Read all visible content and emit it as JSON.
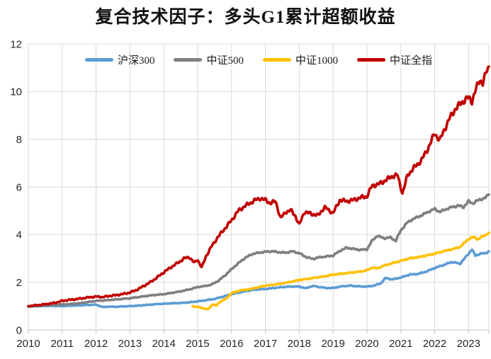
{
  "title": "复合技术因子：多头G1累计超额收益",
  "colors": {
    "grid": "#D9D9D9",
    "axis_line": "#BFBFBF",
    "axis_text": "#262626",
    "background": "#FFFFFF"
  },
  "chart_data": {
    "type": "line",
    "title": "复合技术因子：多头G1累计超额收益",
    "xlabel": "",
    "ylabel": "",
    "grid": true,
    "legend_position": "top-inside",
    "x_axis": {
      "min": 2010,
      "max": 2023.6,
      "ticks": [
        2010,
        2011,
        2012,
        2013,
        2014,
        2015,
        2016,
        2017,
        2018,
        2019,
        2020,
        2021,
        2022,
        2023
      ]
    },
    "y_axis": {
      "min": 0,
      "max": 12,
      "ticks": [
        0,
        2,
        4,
        6,
        8,
        10,
        12
      ]
    },
    "series": [
      {
        "name": "沪深300",
        "id": "hs300",
        "color": "#5B9BD5",
        "points": [
          [
            2010.0,
            0.98
          ],
          [
            2010.25,
            1.0
          ],
          [
            2010.5,
            1.01
          ],
          [
            2010.75,
            1.01
          ],
          [
            2011.0,
            1.0
          ],
          [
            2011.25,
            1.02
          ],
          [
            2011.5,
            1.03
          ],
          [
            2011.75,
            1.05
          ],
          [
            2012.0,
            1.06
          ],
          [
            2012.2,
            0.96
          ],
          [
            2012.4,
            0.98
          ],
          [
            2012.6,
            0.97
          ],
          [
            2012.8,
            0.99
          ],
          [
            2013.0,
            1.0
          ],
          [
            2013.25,
            1.02
          ],
          [
            2013.5,
            1.05
          ],
          [
            2013.75,
            1.08
          ],
          [
            2014.0,
            1.1
          ],
          [
            2014.25,
            1.12
          ],
          [
            2014.5,
            1.13
          ],
          [
            2014.75,
            1.16
          ],
          [
            2015.0,
            1.2
          ],
          [
            2015.25,
            1.25
          ],
          [
            2015.5,
            1.3
          ],
          [
            2015.75,
            1.4
          ],
          [
            2016.0,
            1.5
          ],
          [
            2016.25,
            1.58
          ],
          [
            2016.5,
            1.65
          ],
          [
            2016.75,
            1.7
          ],
          [
            2017.0,
            1.72
          ],
          [
            2017.25,
            1.76
          ],
          [
            2017.5,
            1.8
          ],
          [
            2017.75,
            1.82
          ],
          [
            2018.0,
            1.82
          ],
          [
            2018.2,
            1.75
          ],
          [
            2018.4,
            1.85
          ],
          [
            2018.6,
            1.8
          ],
          [
            2018.8,
            1.76
          ],
          [
            2019.0,
            1.76
          ],
          [
            2019.25,
            1.83
          ],
          [
            2019.5,
            1.86
          ],
          [
            2019.75,
            1.83
          ],
          [
            2020.0,
            1.82
          ],
          [
            2020.2,
            1.86
          ],
          [
            2020.4,
            1.95
          ],
          [
            2020.55,
            2.18
          ],
          [
            2020.75,
            2.12
          ],
          [
            2021.0,
            2.2
          ],
          [
            2021.25,
            2.32
          ],
          [
            2021.5,
            2.35
          ],
          [
            2021.75,
            2.45
          ],
          [
            2022.0,
            2.6
          ],
          [
            2022.25,
            2.72
          ],
          [
            2022.5,
            2.85
          ],
          [
            2022.75,
            2.78
          ],
          [
            2023.0,
            3.2
          ],
          [
            2023.1,
            3.38
          ],
          [
            2023.2,
            3.12
          ],
          [
            2023.35,
            3.2
          ],
          [
            2023.5,
            3.22
          ],
          [
            2023.6,
            3.3
          ]
        ]
      },
      {
        "name": "中证500",
        "id": "csi500",
        "color": "#7F7F7F",
        "points": [
          [
            2010.0,
            1.0
          ],
          [
            2010.25,
            1.01
          ],
          [
            2010.5,
            1.03
          ],
          [
            2010.75,
            1.05
          ],
          [
            2011.0,
            1.07
          ],
          [
            2011.25,
            1.09
          ],
          [
            2011.5,
            1.12
          ],
          [
            2011.75,
            1.17
          ],
          [
            2012.0,
            1.22
          ],
          [
            2012.25,
            1.24
          ],
          [
            2012.5,
            1.27
          ],
          [
            2012.75,
            1.3
          ],
          [
            2013.0,
            1.33
          ],
          [
            2013.25,
            1.38
          ],
          [
            2013.5,
            1.43
          ],
          [
            2013.75,
            1.47
          ],
          [
            2014.0,
            1.5
          ],
          [
            2014.25,
            1.56
          ],
          [
            2014.5,
            1.62
          ],
          [
            2014.75,
            1.7
          ],
          [
            2015.0,
            1.8
          ],
          [
            2015.2,
            1.84
          ],
          [
            2015.4,
            1.9
          ],
          [
            2015.6,
            2.05
          ],
          [
            2015.8,
            2.28
          ],
          [
            2016.0,
            2.55
          ],
          [
            2016.2,
            2.8
          ],
          [
            2016.4,
            3.02
          ],
          [
            2016.6,
            3.18
          ],
          [
            2016.8,
            3.24
          ],
          [
            2017.0,
            3.28
          ],
          [
            2017.2,
            3.3
          ],
          [
            2017.4,
            3.26
          ],
          [
            2017.6,
            3.24
          ],
          [
            2017.8,
            3.3
          ],
          [
            2018.0,
            3.22
          ],
          [
            2018.2,
            3.06
          ],
          [
            2018.4,
            2.98
          ],
          [
            2018.6,
            3.05
          ],
          [
            2018.8,
            3.08
          ],
          [
            2019.0,
            3.12
          ],
          [
            2019.2,
            3.32
          ],
          [
            2019.4,
            3.45
          ],
          [
            2019.6,
            3.4
          ],
          [
            2019.8,
            3.36
          ],
          [
            2020.0,
            3.38
          ],
          [
            2020.15,
            3.74
          ],
          [
            2020.3,
            3.95
          ],
          [
            2020.5,
            3.85
          ],
          [
            2020.7,
            3.88
          ],
          [
            2020.85,
            3.74
          ],
          [
            2021.0,
            4.18
          ],
          [
            2021.2,
            4.52
          ],
          [
            2021.4,
            4.68
          ],
          [
            2021.6,
            4.8
          ],
          [
            2021.8,
            4.95
          ],
          [
            2022.0,
            5.08
          ],
          [
            2022.15,
            4.95
          ],
          [
            2022.3,
            5.05
          ],
          [
            2022.5,
            5.15
          ],
          [
            2022.7,
            5.22
          ],
          [
            2022.85,
            5.15
          ],
          [
            2023.0,
            5.4
          ],
          [
            2023.12,
            5.3
          ],
          [
            2023.25,
            5.42
          ],
          [
            2023.4,
            5.5
          ],
          [
            2023.5,
            5.55
          ],
          [
            2023.6,
            5.68
          ]
        ]
      },
      {
        "name": "中证1000",
        "id": "csi1000",
        "color": "#FFC000",
        "points": [
          [
            2014.85,
            1.0
          ],
          [
            2015.05,
            0.95
          ],
          [
            2015.2,
            0.9
          ],
          [
            2015.3,
            0.86
          ],
          [
            2015.45,
            1.08
          ],
          [
            2015.55,
            1.02
          ],
          [
            2015.7,
            1.22
          ],
          [
            2015.85,
            1.32
          ],
          [
            2016.0,
            1.55
          ],
          [
            2016.25,
            1.66
          ],
          [
            2016.5,
            1.7
          ],
          [
            2016.75,
            1.78
          ],
          [
            2017.0,
            1.86
          ],
          [
            2017.25,
            1.9
          ],
          [
            2017.5,
            1.95
          ],
          [
            2017.75,
            2.02
          ],
          [
            2018.0,
            2.1
          ],
          [
            2018.25,
            2.14
          ],
          [
            2018.5,
            2.2
          ],
          [
            2018.75,
            2.25
          ],
          [
            2019.0,
            2.32
          ],
          [
            2019.25,
            2.36
          ],
          [
            2019.5,
            2.4
          ],
          [
            2019.75,
            2.44
          ],
          [
            2020.0,
            2.5
          ],
          [
            2020.15,
            2.62
          ],
          [
            2020.3,
            2.58
          ],
          [
            2020.5,
            2.7
          ],
          [
            2020.75,
            2.8
          ],
          [
            2021.0,
            2.9
          ],
          [
            2021.25,
            3.0
          ],
          [
            2021.5,
            3.05
          ],
          [
            2021.75,
            3.12
          ],
          [
            2022.0,
            3.2
          ],
          [
            2022.25,
            3.3
          ],
          [
            2022.5,
            3.38
          ],
          [
            2022.75,
            3.48
          ],
          [
            2023.0,
            3.82
          ],
          [
            2023.15,
            3.9
          ],
          [
            2023.28,
            3.8
          ],
          [
            2023.4,
            3.92
          ],
          [
            2023.5,
            3.98
          ],
          [
            2023.6,
            4.08
          ]
        ]
      },
      {
        "name": "中证全指",
        "id": "csi-all",
        "color": "#C00000",
        "points": [
          [
            2010.0,
            1.0
          ],
          [
            2010.2,
            1.03
          ],
          [
            2010.4,
            1.06
          ],
          [
            2010.6,
            1.1
          ],
          [
            2010.8,
            1.14
          ],
          [
            2011.0,
            1.22
          ],
          [
            2011.2,
            1.26
          ],
          [
            2011.4,
            1.29
          ],
          [
            2011.6,
            1.33
          ],
          [
            2011.8,
            1.37
          ],
          [
            2012.0,
            1.4
          ],
          [
            2012.2,
            1.38
          ],
          [
            2012.4,
            1.43
          ],
          [
            2012.6,
            1.46
          ],
          [
            2012.8,
            1.51
          ],
          [
            2013.0,
            1.57
          ],
          [
            2013.2,
            1.68
          ],
          [
            2013.4,
            1.84
          ],
          [
            2013.6,
            2.0
          ],
          [
            2013.8,
            2.2
          ],
          [
            2014.0,
            2.42
          ],
          [
            2014.2,
            2.62
          ],
          [
            2014.4,
            2.8
          ],
          [
            2014.6,
            3.0
          ],
          [
            2014.75,
            3.06
          ],
          [
            2014.9,
            2.82
          ],
          [
            2015.0,
            2.95
          ],
          [
            2015.12,
            2.62
          ],
          [
            2015.25,
            3.1
          ],
          [
            2015.4,
            3.48
          ],
          [
            2015.6,
            3.9
          ],
          [
            2015.8,
            4.25
          ],
          [
            2016.0,
            4.6
          ],
          [
            2016.2,
            5.0
          ],
          [
            2016.4,
            5.2
          ],
          [
            2016.55,
            5.32
          ],
          [
            2016.7,
            5.45
          ],
          [
            2016.85,
            5.52
          ],
          [
            2017.0,
            5.45
          ],
          [
            2017.15,
            5.32
          ],
          [
            2017.3,
            5.4
          ],
          [
            2017.45,
            4.68
          ],
          [
            2017.6,
            4.95
          ],
          [
            2017.75,
            5.02
          ],
          [
            2017.88,
            4.8
          ],
          [
            2018.0,
            4.4
          ],
          [
            2018.15,
            4.95
          ],
          [
            2018.35,
            4.88
          ],
          [
            2018.55,
            4.8
          ],
          [
            2018.75,
            5.15
          ],
          [
            2019.0,
            4.9
          ],
          [
            2019.2,
            5.45
          ],
          [
            2019.4,
            5.4
          ],
          [
            2019.6,
            5.45
          ],
          [
            2019.8,
            5.55
          ],
          [
            2020.0,
            5.6
          ],
          [
            2020.15,
            6.05
          ],
          [
            2020.35,
            6.12
          ],
          [
            2020.55,
            6.28
          ],
          [
            2020.75,
            6.45
          ],
          [
            2020.9,
            6.5
          ],
          [
            2021.05,
            5.72
          ],
          [
            2021.2,
            6.5
          ],
          [
            2021.4,
            6.82
          ],
          [
            2021.6,
            7.1
          ],
          [
            2021.8,
            7.6
          ],
          [
            2022.0,
            8.25
          ],
          [
            2022.15,
            7.95
          ],
          [
            2022.3,
            8.45
          ],
          [
            2022.45,
            8.9
          ],
          [
            2022.6,
            9.25
          ],
          [
            2022.8,
            9.55
          ],
          [
            2023.0,
            9.75
          ],
          [
            2023.1,
            9.6
          ],
          [
            2023.22,
            10.1
          ],
          [
            2023.33,
            10.5
          ],
          [
            2023.42,
            10.35
          ],
          [
            2023.52,
            10.8
          ],
          [
            2023.6,
            11.05
          ]
        ]
      }
    ]
  }
}
